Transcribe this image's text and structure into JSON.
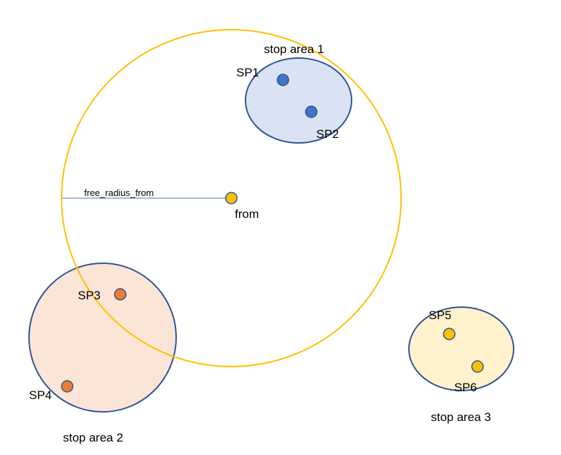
{
  "colors": {
    "search_circle": "#ffc000",
    "area_border": "#2f5597",
    "area1_fill": "#dae3f3",
    "area2_fill": "#fbe5d6",
    "area3_fill": "#fff2cc",
    "point_blue": "#4472c4",
    "point_orange": "#ed7d31",
    "point_yellow": "#ffc000",
    "radius_line": "#4472c4"
  },
  "labels": {
    "stop_area_1": "stop area 1",
    "stop_area_2": "stop area 2",
    "stop_area_3": "stop area 3",
    "sp1": "SP1",
    "sp2": "SP2",
    "sp3": "SP3",
    "sp4": "SP4",
    "sp5": "SP5",
    "sp6": "SP6",
    "from": "from",
    "radius": "free_radius_from"
  },
  "icons": {
    "stop_point": "circle-dot",
    "origin": "circle-dot"
  }
}
